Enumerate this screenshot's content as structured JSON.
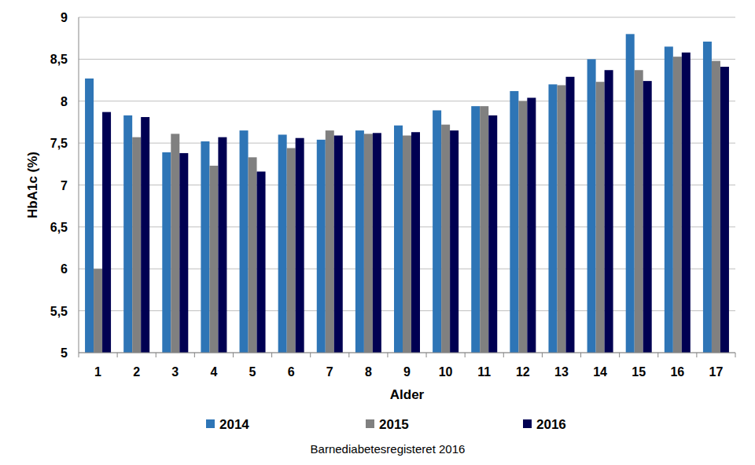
{
  "chart_data": {
    "type": "bar",
    "x_label": "Alder",
    "y_label": "HbA1c (%)",
    "source": "Barnediabetesregisteret 2016",
    "categories": [
      "1",
      "2",
      "3",
      "4",
      "5",
      "6",
      "7",
      "8",
      "9",
      "10",
      "11",
      "12",
      "13",
      "14",
      "15",
      "16",
      "17"
    ],
    "series": [
      {
        "name": "2014",
        "color": "#2e75b6",
        "values": [
          8.27,
          7.83,
          7.39,
          7.52,
          7.65,
          7.6,
          7.54,
          7.65,
          7.71,
          7.89,
          7.94,
          8.12,
          8.2,
          8.5,
          8.8,
          8.65,
          8.71
        ]
      },
      {
        "name": "2015",
        "color": "#808080",
        "values": [
          6.0,
          7.57,
          7.61,
          7.23,
          7.33,
          7.44,
          7.65,
          7.61,
          7.59,
          7.72,
          7.94,
          8.0,
          8.19,
          8.23,
          8.37,
          8.53,
          8.48
        ]
      },
      {
        "name": "2016",
        "color": "#000052",
        "values": [
          7.87,
          7.81,
          7.38,
          7.57,
          7.16,
          7.56,
          7.59,
          7.62,
          7.63,
          7.65,
          7.83,
          8.04,
          8.29,
          8.37,
          8.24,
          8.58,
          8.41
        ]
      }
    ],
    "ylim": [
      5,
      9
    ],
    "yticks": [
      5,
      {
        "value": 5.5,
        "label": "5,5"
      },
      6,
      {
        "value": 6.5,
        "label": "6,5"
      },
      7,
      {
        "value": 7.5,
        "label": "7,5"
      },
      8,
      {
        "value": 8.5,
        "label": "8,5"
      },
      9
    ],
    "grid": true,
    "legend": "bottom"
  }
}
